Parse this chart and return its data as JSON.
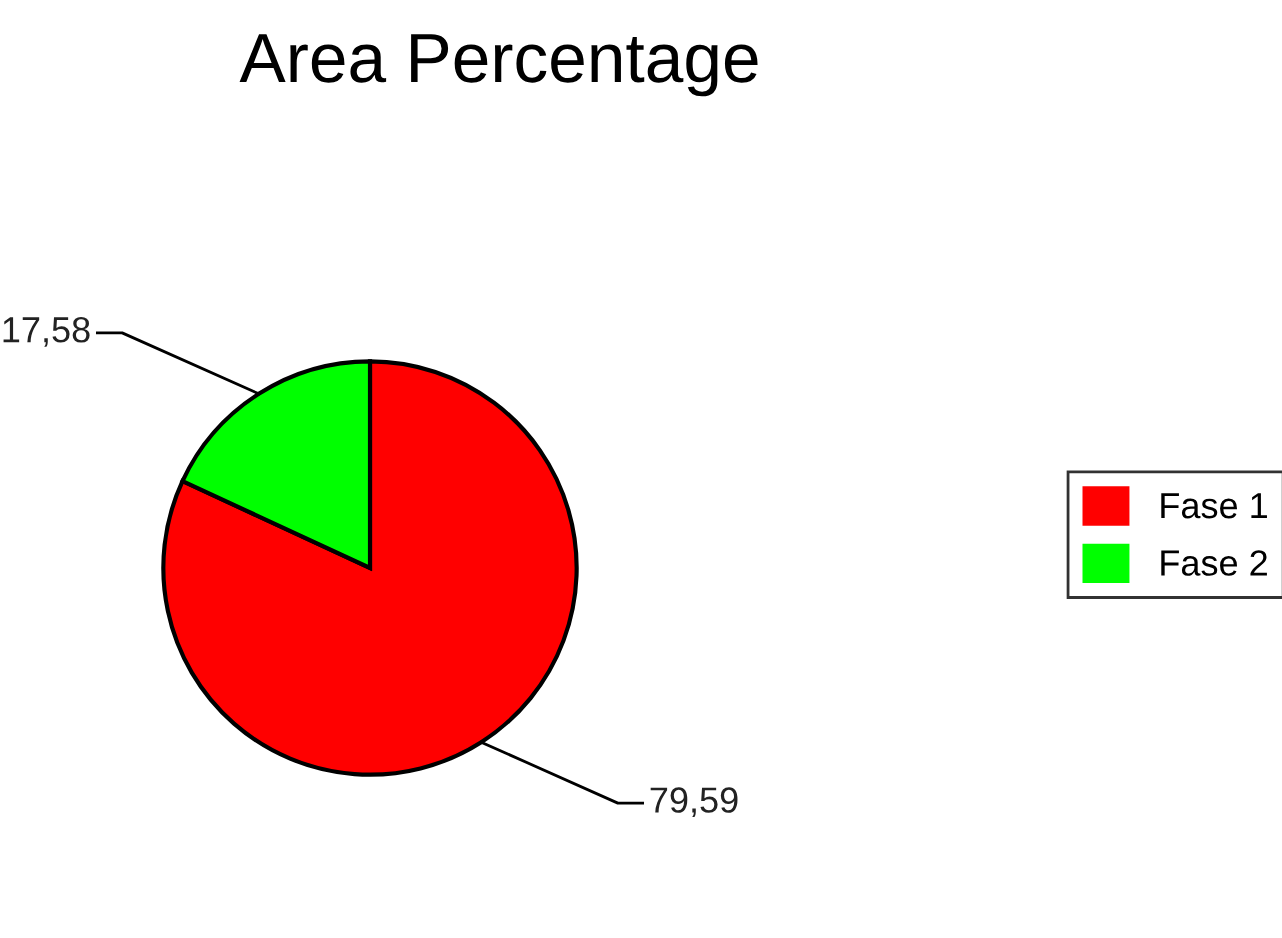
{
  "chart_data": {
    "type": "pie",
    "title": "Area Percentage",
    "categories": [
      "Fase 1",
      "Fase 2"
    ],
    "values": [
      79.59,
      17.58
    ],
    "value_labels": [
      "79,59",
      "17,58"
    ],
    "colors": [
      "#ff0000",
      "#00ff00"
    ],
    "legend": "right"
  }
}
